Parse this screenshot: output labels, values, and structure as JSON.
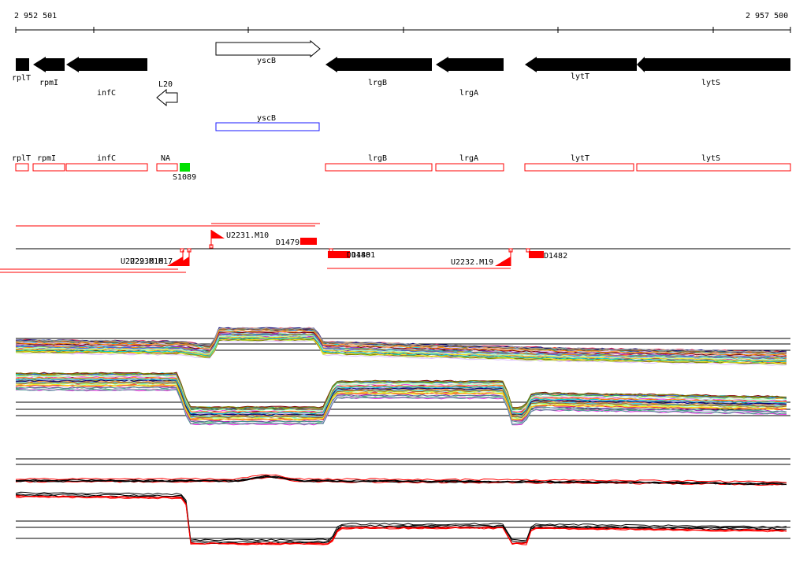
{
  "coordinates": {
    "start_label": "2 952 501",
    "end_label": "2 957 500"
  },
  "colors": {
    "gene_fill": "#000000",
    "outline_gene": "#000000",
    "blue_box": "#1a1aff",
    "red_feature": "#ff0000",
    "green_marker": "#00e000",
    "axis": "#000000"
  },
  "genes": [
    {
      "label": "rplT",
      "strand": "none"
    },
    {
      "label": "rpmI",
      "strand": "minus"
    },
    {
      "label": "infC",
      "strand": "minus"
    },
    {
      "label": "yscB",
      "strand": "plus",
      "style": "outline"
    },
    {
      "label": "L20",
      "strand": "minus",
      "style": "outline"
    },
    {
      "label": "lrgB",
      "strand": "minus"
    },
    {
      "label": "lrgA",
      "strand": "minus"
    },
    {
      "label": "lytT",
      "strand": "minus"
    },
    {
      "label": "lytS",
      "strand": "minus"
    }
  ],
  "blue_features": [
    {
      "label": "yscB"
    }
  ],
  "red_boxes": [
    {
      "label": "rplT"
    },
    {
      "label": "rpmI"
    },
    {
      "label": "infC"
    },
    {
      "label": "NA"
    },
    {
      "label": "lrgB"
    },
    {
      "label": "lrgA"
    },
    {
      "label": "lytT"
    },
    {
      "label": "lytS"
    }
  ],
  "marker_label": "S1089",
  "transcript_labels": {
    "u2231_m10": "U2231.M10",
    "d1479": "D1479",
    "d1481": "D1481",
    "d1480": "D1480",
    "u2232_m19": "U2232.M19",
    "d1482": "D1482",
    "left_a": "U2229.M16",
    "left_b": "U2230.M17"
  }
}
